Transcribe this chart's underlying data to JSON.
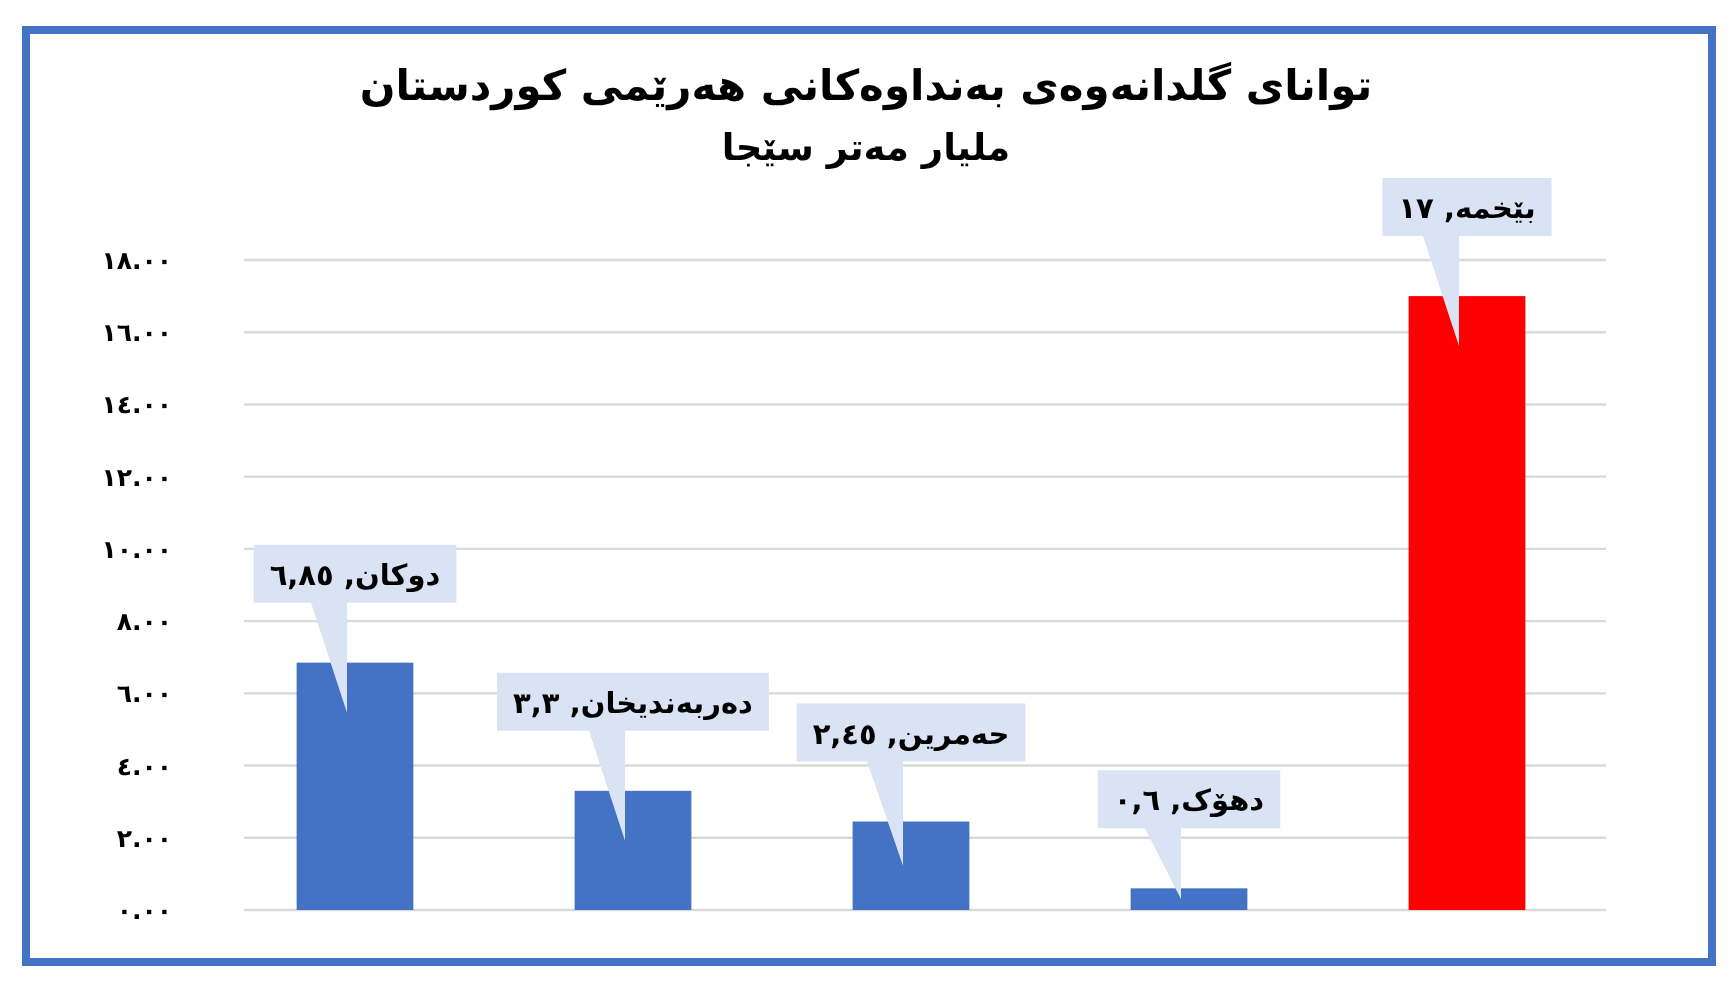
{
  "chart_data": {
    "type": "bar",
    "title": "توانای گلدانەوەی بەنداوەکانی هەرێمی کوردستان",
    "subtitle": "ملیار مەتر سێجا",
    "categories": [
      null,
      null,
      null,
      null,
      null
    ],
    "values": [
      6.85,
      3.3,
      2.45,
      0.6,
      17
    ],
    "colors": [
      "#4472c4",
      "#4472c4",
      "#4472c4",
      "#4472c4",
      "#ff0000"
    ],
    "value_labels": [
      "دوکان, ٦,٨٥",
      "دەربەندیخان, ٣,٣",
      "حەمرین, ٢,٤٥",
      "دهۆک, ٠,٦",
      "بێخمە, ١٧"
    ],
    "ylim": [
      0,
      18
    ],
    "yticks": [
      {
        "value": 0,
        "label": "٠.٠٠"
      },
      {
        "value": 2,
        "label": "٢.٠٠"
      },
      {
        "value": 4,
        "label": "٤.٠٠"
      },
      {
        "value": 6,
        "label": "٦.٠٠"
      },
      {
        "value": 8,
        "label": "٨.٠٠"
      },
      {
        "value": 10,
        "label": "١٠.٠٠"
      },
      {
        "value": 12,
        "label": "١٢.٠٠"
      },
      {
        "value": 14,
        "label": "١٤.٠٠"
      },
      {
        "value": 16,
        "label": "١٦.٠٠"
      },
      {
        "value": 18,
        "label": "١٨.٠٠"
      }
    ],
    "grid": "y"
  }
}
